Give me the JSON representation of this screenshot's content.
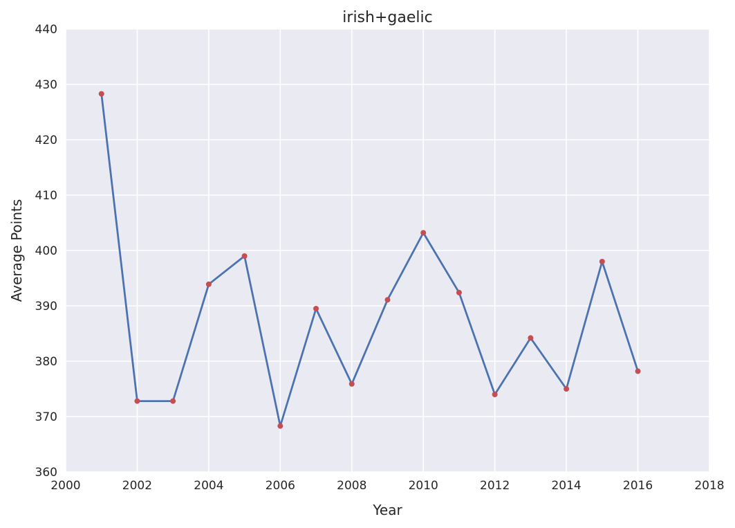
{
  "chart_data": {
    "type": "line",
    "title": "irish+gaelic",
    "xlabel": "Year",
    "ylabel": "Average Points",
    "xlim": [
      2000,
      2018
    ],
    "ylim": [
      360,
      440
    ],
    "xticks": [
      "2000",
      "2002",
      "2004",
      "2006",
      "2008",
      "2010",
      "2012",
      "2014",
      "2016",
      "2018"
    ],
    "yticks": [
      "360",
      "370",
      "380",
      "390",
      "400",
      "410",
      "420",
      "430",
      "440"
    ],
    "grid": true,
    "series": [
      {
        "x": [
          2001,
          2002,
          2003,
          2004,
          2005,
          2006,
          2007,
          2008,
          2009,
          2010,
          2011,
          2012,
          2013,
          2014,
          2015,
          2016
        ],
        "y": [
          428.3,
          372.8,
          372.8,
          393.9,
          399.0,
          368.3,
          389.5,
          375.9,
          391.1,
          403.2,
          392.4,
          374.0,
          384.2,
          375.0,
          398.0,
          378.2
        ]
      }
    ],
    "colors": {
      "background": "#eaeaf2",
      "grid": "#ffffff",
      "line": "#4c72b0",
      "marker": "#c44e52"
    }
  }
}
